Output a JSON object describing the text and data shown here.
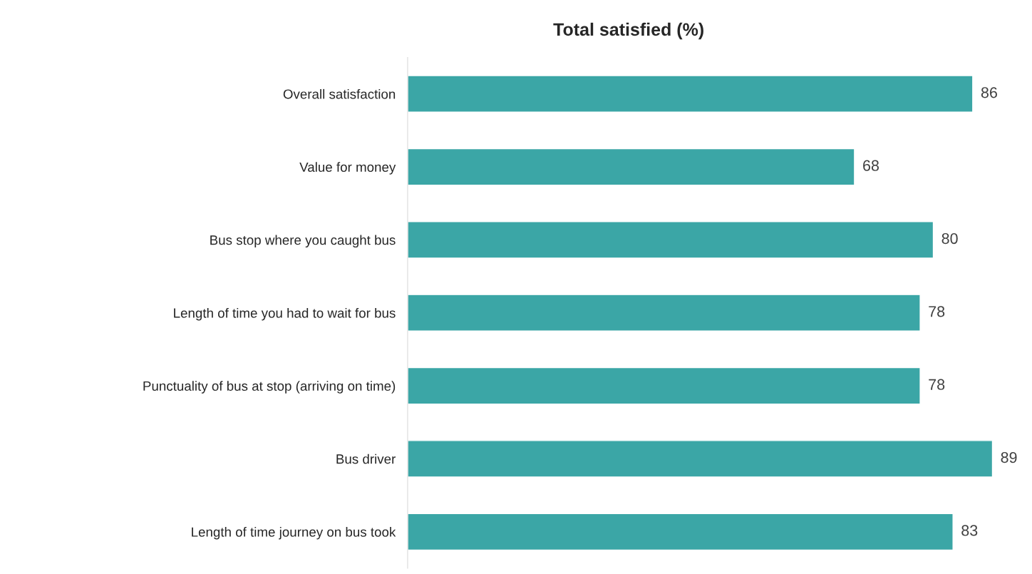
{
  "chart_data": {
    "type": "bar",
    "orientation": "horizontal",
    "title": "Total satisfied (%)",
    "categories": [
      "Overall satisfaction",
      "Value for money",
      "Bus stop where you caught bus",
      "Length of time you had to wait for bus",
      "Punctuality of bus at stop (arriving on time)",
      "Bus driver",
      "Length of time journey on bus took"
    ],
    "values": [
      86,
      68,
      80,
      78,
      78,
      89,
      83
    ],
    "color": "#3ba6a6",
    "data_labels": true,
    "grid": false,
    "legend": false
  }
}
